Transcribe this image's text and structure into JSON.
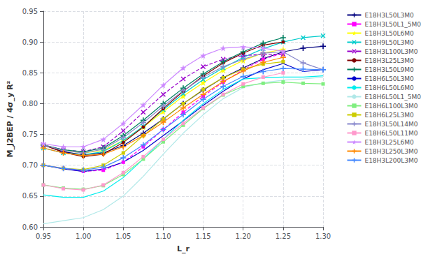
{
  "chart_data": {
    "type": "line",
    "xlabel": "L_r",
    "ylabel": "M_J2BEP / 4σ_y R²",
    "xlim": [
      0.95,
      1.3
    ],
    "ylim": [
      0.6,
      0.95
    ],
    "xticks": [
      0.95,
      {
        "value": 1.0,
        "label": "1.00"
      },
      1.05,
      {
        "value": 1.1,
        "label": "1.10"
      },
      1.15,
      {
        "value": 1.2,
        "label": "1.20"
      },
      1.25,
      {
        "value": 1.3,
        "label": "1.30"
      }
    ],
    "yticks": [
      {
        "value": 0.6,
        "label": "0.60"
      },
      0.65,
      {
        "value": 0.7,
        "label": "0.70"
      },
      0.75,
      {
        "value": 0.8,
        "label": "0.80"
      },
      0.85,
      {
        "value": 0.9,
        "label": "0.90"
      },
      0.95
    ],
    "grid": true,
    "legend": "right",
    "series": [
      {
        "name": "E18H3L50L3M0",
        "color": "#00007f",
        "marker": "plus",
        "line_style": "solid",
        "x": [
          0.95,
          0.975,
          1.0,
          1.025,
          1.05,
          1.075,
          1.1,
          1.125,
          1.15,
          1.175,
          1.2,
          1.225,
          1.25,
          1.275,
          1.3
        ],
        "values": [
          0.733,
          0.722,
          0.717,
          0.72,
          0.732,
          0.752,
          0.775,
          0.8,
          0.822,
          0.842,
          0.858,
          0.873,
          0.884,
          0.89,
          0.893
        ]
      },
      {
        "name": "E18H3L50L1_5M0",
        "color": "#ff00ff",
        "marker": "square",
        "line_style": "dashed",
        "x": [
          0.95,
          0.975,
          1.0,
          1.025,
          1.05,
          1.075,
          1.1,
          1.125,
          1.15,
          1.175,
          1.2,
          1.225,
          1.25
        ],
        "values": [
          0.7,
          0.695,
          0.69,
          0.692,
          0.705,
          0.73,
          0.758,
          0.786,
          0.812,
          0.835,
          0.855,
          0.872,
          0.882
        ]
      },
      {
        "name": "E18H3L50L6M0",
        "color": "#ffff00",
        "marker": "star",
        "line_style": "solid",
        "x": [
          0.95,
          0.975,
          1.0,
          1.025,
          1.05,
          1.075,
          1.1,
          1.125,
          1.15,
          1.175,
          1.2,
          1.225,
          1.25
        ],
        "values": [
          0.733,
          0.724,
          0.72,
          0.724,
          0.74,
          0.762,
          0.787,
          0.812,
          0.834,
          0.854,
          0.87,
          0.882,
          0.888
        ]
      },
      {
        "name": "E18H9L50L3M0",
        "color": "#00cccc",
        "marker": "x",
        "line_style": "solid",
        "x": [
          0.95,
          0.975,
          1.0,
          1.025,
          1.05,
          1.075,
          1.1,
          1.125,
          1.15,
          1.175,
          1.2,
          1.225,
          1.25,
          1.275,
          1.3
        ],
        "values": [
          0.728,
          0.72,
          0.717,
          0.722,
          0.74,
          0.763,
          0.79,
          0.816,
          0.839,
          0.858,
          0.875,
          0.889,
          0.9,
          0.907,
          0.91
        ]
      },
      {
        "name": "E18H3L100L3M0",
        "color": "#9900cc",
        "marker": "x",
        "line_style": "dashed",
        "x": [
          0.95,
          0.975,
          1.0,
          1.025,
          1.05,
          1.075,
          1.1,
          1.125,
          1.15,
          1.175,
          1.2,
          1.225,
          1.25
        ],
        "values": [
          0.733,
          0.725,
          0.722,
          0.73,
          0.756,
          0.786,
          0.815,
          0.84,
          0.86,
          0.872,
          0.878,
          0.88,
          0.88
        ]
      },
      {
        "name": "E18H3L25L3M0",
        "color": "#800000",
        "marker": "circle",
        "line_style": "solid",
        "x": [
          0.95,
          0.975,
          1.0,
          1.025,
          1.05,
          1.075,
          1.1,
          1.125,
          1.15,
          1.175,
          1.2,
          1.225,
          1.25
        ],
        "values": [
          0.733,
          0.721,
          0.714,
          0.718,
          0.737,
          0.762,
          0.792,
          0.82,
          0.845,
          0.866,
          0.882,
          0.895,
          0.9
        ]
      },
      {
        "name": "E18H3L50L9M0",
        "color": "#008060",
        "marker": "plus",
        "line_style": "solid",
        "x": [
          0.95,
          0.975,
          1.0,
          1.025,
          1.05,
          1.075,
          1.1,
          1.125,
          1.15,
          1.175,
          1.2,
          1.225,
          1.25
        ],
        "values": [
          0.733,
          0.725,
          0.722,
          0.728,
          0.748,
          0.773,
          0.8,
          0.825,
          0.848,
          0.868,
          0.884,
          0.898,
          0.907
        ]
      },
      {
        "name": "E18H6L50L3M0",
        "color": "#0000cc",
        "marker": "none",
        "line_style": "solid",
        "x": [
          0.95,
          0.975,
          1.0,
          1.025,
          1.05,
          1.075,
          1.1,
          1.125,
          1.15,
          1.175,
          1.2,
          1.225,
          1.25,
          1.275,
          1.3
        ],
        "values": [
          0.7,
          0.694,
          0.69,
          0.694,
          0.705,
          0.724,
          0.748,
          0.772,
          0.797,
          0.82,
          0.84,
          0.855,
          0.865,
          0.852,
          0.855
        ]
      },
      {
        "name": "E18H6L50L6M0",
        "color": "#00eeee",
        "marker": "none",
        "line_style": "solid",
        "x": [
          0.95,
          0.975,
          1.0,
          1.025,
          1.05,
          1.075,
          1.1,
          1.125,
          1.15,
          1.175,
          1.2,
          1.225,
          1.25,
          1.275,
          1.3
        ],
        "values": [
          0.652,
          0.648,
          0.648,
          0.658,
          0.68,
          0.71,
          0.742,
          0.773,
          0.8,
          0.823,
          0.84,
          0.842,
          0.843,
          0.843,
          0.845
        ]
      },
      {
        "name": "E18H6L50L1_5M0",
        "color": "#b0e8e8",
        "marker": "none",
        "line_style": "solid",
        "x": [
          0.95,
          0.975,
          1.0,
          1.025,
          1.05,
          1.075,
          1.1,
          1.125,
          1.15,
          1.175,
          1.2,
          1.225,
          1.25,
          1.275,
          1.3
        ],
        "values": [
          0.605,
          0.61,
          0.615,
          0.628,
          0.65,
          0.682,
          0.718,
          0.752,
          0.782,
          0.808,
          0.826,
          0.834,
          0.838,
          0.84,
          0.843
        ]
      },
      {
        "name": "E18H6L100L3M0",
        "color": "#80ee80",
        "marker": "square",
        "line_style": "solid",
        "x": [
          0.95,
          0.975,
          1.0,
          1.025,
          1.05,
          1.075,
          1.1,
          1.125,
          1.15,
          1.175,
          1.2,
          1.225,
          1.25,
          1.275,
          1.3
        ],
        "values": [
          0.668,
          0.663,
          0.661,
          0.667,
          0.685,
          0.71,
          0.738,
          0.765,
          0.792,
          0.814,
          0.828,
          0.833,
          0.835,
          0.833,
          0.832
        ]
      },
      {
        "name": "E18H6L25L3M0",
        "color": "#cccc00",
        "marker": "square",
        "line_style": "solid",
        "x": [
          0.95,
          0.975,
          1.0,
          1.025,
          1.05,
          1.075,
          1.1,
          1.125,
          1.15,
          1.175,
          1.2,
          1.225,
          1.25
        ],
        "values": [
          0.7,
          0.695,
          0.693,
          0.7,
          0.72,
          0.748,
          0.775,
          0.8,
          0.823,
          0.842,
          0.856,
          0.864,
          0.868
        ]
      },
      {
        "name": "E18H3L50L14M0",
        "color": "#8888cc",
        "marker": "plus",
        "line_style": "solid",
        "x": [
          0.95,
          0.975,
          1.0,
          1.025,
          1.05,
          1.075,
          1.1,
          1.125,
          1.15,
          1.175,
          1.2,
          1.225,
          1.25,
          1.275,
          1.3
        ],
        "values": [
          0.733,
          0.724,
          0.72,
          0.726,
          0.745,
          0.769,
          0.796,
          0.821,
          0.843,
          0.86,
          0.872,
          0.882,
          0.884,
          0.866,
          0.855
        ]
      },
      {
        "name": "E18H6L50L11M0",
        "color": "#ff99cc",
        "marker": "square",
        "line_style": "solid",
        "x": [
          0.95,
          0.975,
          1.0,
          1.025,
          1.05,
          1.075,
          1.1,
          1.125,
          1.15,
          1.175,
          1.2,
          1.225,
          1.25
        ],
        "values": [
          0.668,
          0.662,
          0.66,
          0.668,
          0.688,
          0.714,
          0.742,
          0.768,
          0.793,
          0.815,
          0.832,
          0.843,
          0.85
        ]
      },
      {
        "name": "E18H3L25L6M0",
        "color": "#cc88ff",
        "marker": "star",
        "line_style": "solid",
        "x": [
          0.95,
          0.975,
          1.0,
          1.025,
          1.05,
          1.075,
          1.1,
          1.125,
          1.15,
          1.175,
          1.2,
          1.225,
          1.25
        ],
        "values": [
          0.735,
          0.73,
          0.73,
          0.742,
          0.768,
          0.798,
          0.83,
          0.858,
          0.878,
          0.89,
          0.892,
          0.89,
          0.885
        ]
      },
      {
        "name": "E18H3L250L3M0",
        "color": "#ff8800",
        "marker": "plus",
        "line_style": "solid",
        "x": [
          0.95,
          0.975,
          1.0,
          1.025,
          1.05,
          1.075,
          1.1,
          1.125,
          1.15,
          1.175,
          1.2,
          1.225,
          1.25
        ],
        "values": [
          0.728,
          0.72,
          0.716,
          0.718,
          0.73,
          0.748,
          0.77,
          0.793,
          0.815,
          0.836,
          0.853,
          0.867,
          0.875
        ]
      },
      {
        "name": "E18H3L200L3M0",
        "color": "#4488ff",
        "marker": "plus",
        "line_style": "solid",
        "x": [
          0.95,
          0.975,
          1.0,
          1.025,
          1.05,
          1.075,
          1.1,
          1.125,
          1.15,
          1.175,
          1.2,
          1.225,
          1.25,
          1.275,
          1.3
        ],
        "values": [
          0.7,
          0.695,
          0.692,
          0.697,
          0.712,
          0.733,
          0.758,
          0.782,
          0.807,
          0.828,
          0.844,
          0.852,
          0.857,
          0.856,
          0.855
        ]
      }
    ]
  }
}
